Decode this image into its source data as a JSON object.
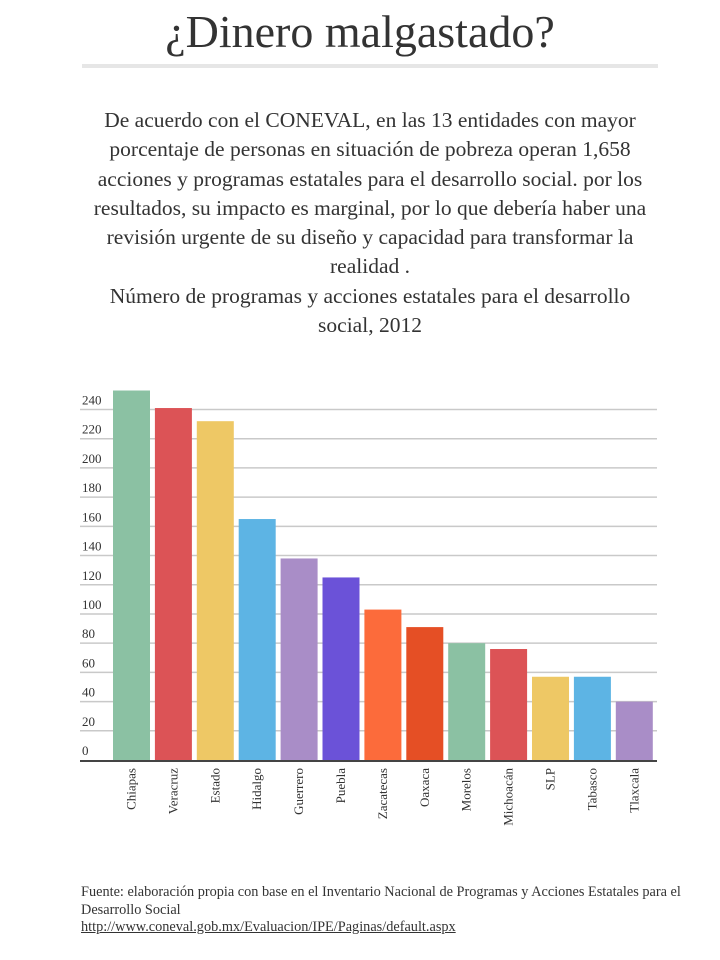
{
  "header": {
    "title": "¿Dinero malgastado?"
  },
  "intro": {
    "text": "De acuerdo con el CONEVAL, en las 13 entidades con mayor porcentaje de personas en situación de pobreza operan 1,658 acciones y programas estatales para el desarrollo social. por los resultados, su impacto es marginal, por lo que debería haber una revisión urgente de su diseño y capacidad para transformar la realidad .",
    "chart_caption": "Número de programas y acciones estatales para el desarrollo social, 2012"
  },
  "source": {
    "text": "Fuente: elaboración propia con base en el Inventario Nacional de Programas y Acciones Estatales para el Desarrollo Social",
    "link": "http://www.coneval.gob.mx/Evaluacion/IPE/Paginas/default.aspx"
  },
  "chart_data": {
    "type": "bar",
    "title": "Número de programas y acciones estatales para el desarrollo social, 2012",
    "xlabel": "",
    "ylabel": "",
    "ylim": [
      0,
      240
    ],
    "yticks": [
      0,
      20,
      40,
      60,
      80,
      100,
      120,
      140,
      160,
      180,
      200,
      220,
      240
    ],
    "grid": true,
    "legend": "none",
    "categories": [
      "Chiapas",
      "Veracruz",
      "Estado",
      "Hidalgo",
      "Guerrero",
      "Puebla",
      "Zacatecas",
      "Oaxaca",
      "Morelos",
      "Michoacán",
      "SLP",
      "Tabasco",
      "Tlaxcala"
    ],
    "values": [
      253,
      241,
      232,
      165,
      138,
      125,
      103,
      91,
      80,
      76,
      57,
      57,
      40
    ],
    "colors": [
      "#8bc1a3",
      "#dc5356",
      "#eec865",
      "#5db4e4",
      "#a98dc7",
      "#6b52d8",
      "#fc6b3b",
      "#e54f25",
      "#8bc1a3",
      "#dc5356",
      "#eec865",
      "#5db4e4",
      "#a98dc7"
    ]
  }
}
